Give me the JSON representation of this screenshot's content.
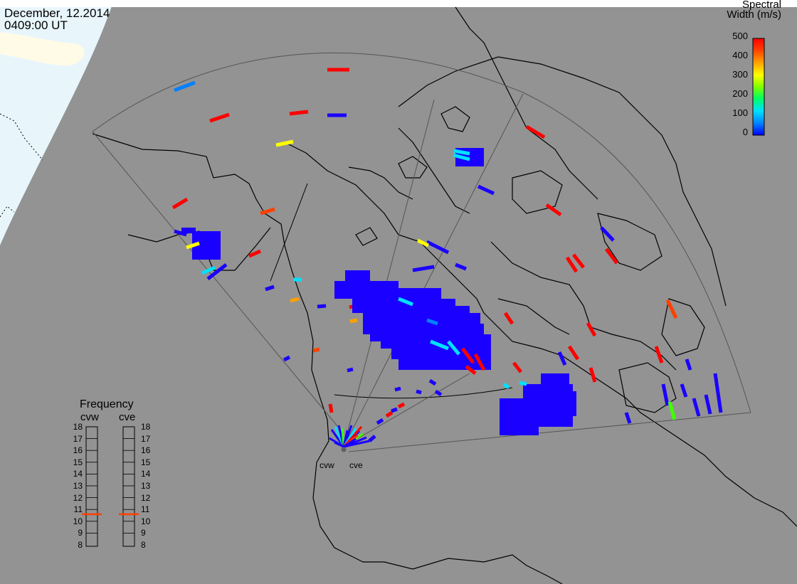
{
  "header": {
    "date": "December, 12.2014",
    "time": "0409:00 UT"
  },
  "colorbar": {
    "title_line1": "Spectral",
    "title_line2": "Width (m/s)",
    "ticks": [
      "500",
      "400",
      "300",
      "200",
      "100",
      "0"
    ],
    "colors": [
      "#0000ff",
      "#0080ff",
      "#00e0ff",
      "#00ff60",
      "#80ff00",
      "#ffff00",
      "#ffa000",
      "#ff4000",
      "#ff0000"
    ]
  },
  "radars": [
    {
      "name": "cvw",
      "label": "cvw"
    },
    {
      "name": "cve",
      "label": "cve"
    }
  ],
  "frequency_panel": {
    "title": "Frequency",
    "columns": [
      "cvw",
      "cve"
    ],
    "levels": [
      "18",
      "17",
      "16",
      "15",
      "14",
      "13",
      "12",
      "11",
      "10",
      "9",
      "8"
    ],
    "cvw_mhz": 10.6,
    "cve_mhz": 10.6,
    "marker_color": "#ff4000"
  },
  "colors": {
    "background_gray": "#939393",
    "ice": "#e8f6fc",
    "coast": "#000000"
  }
}
